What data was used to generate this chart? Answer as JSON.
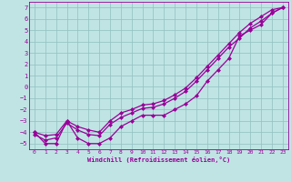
{
  "xlabel": "Windchill (Refroidissement éolien,°C)",
  "xlim": [
    -0.5,
    23.5
  ],
  "ylim": [
    -5.5,
    7.5
  ],
  "xticks": [
    0,
    1,
    2,
    3,
    4,
    5,
    6,
    7,
    8,
    9,
    10,
    11,
    12,
    13,
    14,
    15,
    16,
    17,
    18,
    19,
    20,
    21,
    22,
    23
  ],
  "yticks": [
    -5,
    -4,
    -3,
    -2,
    -1,
    0,
    1,
    2,
    3,
    4,
    5,
    6,
    7
  ],
  "bg_color": "#c0e4e4",
  "grid_color": "#90c0c0",
  "line_color": "#990099",
  "curve1_x": [
    0,
    1,
    2,
    3,
    4,
    5,
    6,
    7,
    8,
    9,
    10,
    11,
    12,
    13,
    14,
    15,
    16,
    17,
    18,
    19,
    20,
    21,
    22,
    23
  ],
  "curve1_y": [
    -4.0,
    -5.0,
    -5.0,
    -3.0,
    -4.5,
    -5.0,
    -5.0,
    -4.5,
    -3.5,
    -3.0,
    -2.5,
    -2.5,
    -2.5,
    -2.0,
    -1.5,
    -0.8,
    0.5,
    1.5,
    2.5,
    4.5,
    5.0,
    5.5,
    6.5,
    7.0
  ],
  "curve2_x": [
    0,
    1,
    2,
    3,
    4,
    5,
    6,
    7,
    8,
    9,
    10,
    11,
    12,
    13,
    14,
    15,
    16,
    17,
    18,
    19,
    20,
    21,
    22,
    23
  ],
  "curve2_y": [
    -4.2,
    -4.7,
    -4.5,
    -3.2,
    -3.8,
    -4.2,
    -4.3,
    -3.3,
    -2.7,
    -2.3,
    -1.9,
    -1.8,
    -1.5,
    -1.0,
    -0.4,
    0.5,
    1.5,
    2.5,
    3.5,
    4.3,
    5.2,
    5.8,
    6.5,
    7.0
  ],
  "curve3_x": [
    0,
    1,
    2,
    3,
    4,
    5,
    6,
    7,
    8,
    9,
    10,
    11,
    12,
    13,
    14,
    15,
    16,
    17,
    18,
    19,
    20,
    21,
    22,
    23
  ],
  "curve3_y": [
    -4.0,
    -4.3,
    -4.2,
    -3.0,
    -3.5,
    -3.8,
    -4.0,
    -3.0,
    -2.3,
    -2.0,
    -1.6,
    -1.5,
    -1.2,
    -0.7,
    -0.1,
    0.8,
    1.8,
    2.8,
    3.8,
    4.8,
    5.6,
    6.2,
    6.8,
    7.0
  ]
}
